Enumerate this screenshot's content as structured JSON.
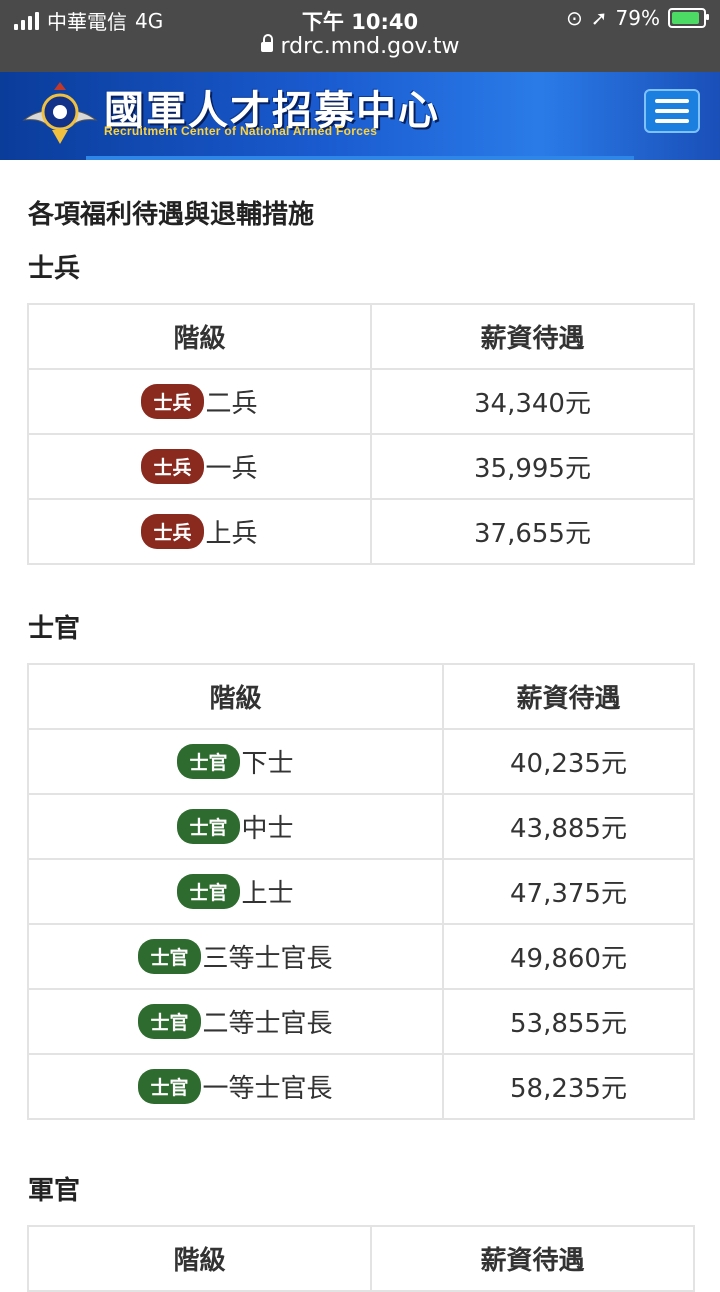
{
  "status_bar": {
    "carrier": "中華電信",
    "network": "4G",
    "time": "下午 10:40",
    "battery": "79%",
    "url": "rdrc.mnd.gov.tw"
  },
  "header": {
    "title_cn": "國軍人才招募中心",
    "title_en": "Recruitment Center of National Armed Forces",
    "menu_icon": "hamburger-menu-icon"
  },
  "page": {
    "heading": "各項福利待遇與退輔措施"
  },
  "sections": [
    {
      "title": "士兵",
      "col_rank": "階級",
      "col_salary": "薪資待遇",
      "badge": "士兵",
      "rows": [
        {
          "rank": "二兵",
          "salary": "34,340元"
        },
        {
          "rank": "一兵",
          "salary": "35,995元"
        },
        {
          "rank": "上兵",
          "salary": "37,655元"
        }
      ]
    },
    {
      "title": "士官",
      "col_rank": "階級",
      "col_salary": "薪資待遇",
      "badge": "士官",
      "rows": [
        {
          "rank": "下士",
          "salary": "40,235元"
        },
        {
          "rank": "中士",
          "salary": "43,885元"
        },
        {
          "rank": "上士",
          "salary": "47,375元"
        },
        {
          "rank": "三等士官長",
          "salary": "49,860元"
        },
        {
          "rank": "二等士官長",
          "salary": "53,855元"
        },
        {
          "rank": "一等士官長",
          "salary": "58,235元"
        }
      ]
    },
    {
      "title": "軍官",
      "col_rank": "階級",
      "col_salary": "薪資待遇",
      "rows": []
    }
  ],
  "colors": {
    "soldier_badge": "#8a2a1e",
    "nco_badge": "#2e6b2e",
    "header_blue": "#1a5bd0"
  }
}
